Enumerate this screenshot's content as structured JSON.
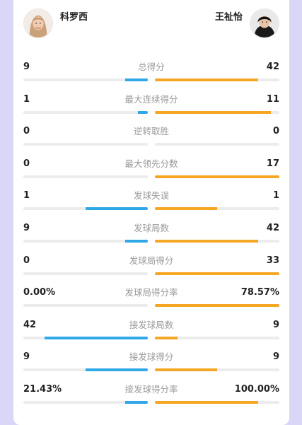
{
  "players": {
    "left": {
      "name": "科罗西",
      "avatar_icon": "female-player-portrait"
    },
    "right": {
      "name": "王祉怡",
      "avatar_icon": "female-player-portrait"
    }
  },
  "colors": {
    "left_bar": "#2ea8e6",
    "right_bar": "#f5a623",
    "track": "#ececec"
  },
  "stats": [
    {
      "label": "总得分",
      "left": "9",
      "right": "42",
      "left_pct": 0.18,
      "right_pct": 0.83
    },
    {
      "label": "最大连续得分",
      "left": "1",
      "right": "11",
      "left_pct": 0.08,
      "right_pct": 0.93
    },
    {
      "label": "逆转取胜",
      "left": "0",
      "right": "0",
      "left_pct": 0,
      "right_pct": 0
    },
    {
      "label": "最大领先分数",
      "left": "0",
      "right": "17",
      "left_pct": 0,
      "right_pct": 1.0
    },
    {
      "label": "发球失误",
      "left": "1",
      "right": "1",
      "left_pct": 0.5,
      "right_pct": 0.5
    },
    {
      "label": "发球局数",
      "left": "9",
      "right": "42",
      "left_pct": 0.18,
      "right_pct": 0.83
    },
    {
      "label": "发球局得分",
      "left": "0",
      "right": "33",
      "left_pct": 0,
      "right_pct": 1.0
    },
    {
      "label": "发球局得分率",
      "left": "0.00%",
      "right": "78.57%",
      "left_pct": 0,
      "right_pct": 1.0
    },
    {
      "label": "接发球局数",
      "left": "42",
      "right": "9",
      "left_pct": 0.83,
      "right_pct": 0.18
    },
    {
      "label": "接发球得分",
      "left": "9",
      "right": "9",
      "left_pct": 0.5,
      "right_pct": 0.5
    },
    {
      "label": "接发球得分率",
      "left": "21.43%",
      "right": "100.00%",
      "left_pct": 0.18,
      "right_pct": 0.83
    }
  ]
}
